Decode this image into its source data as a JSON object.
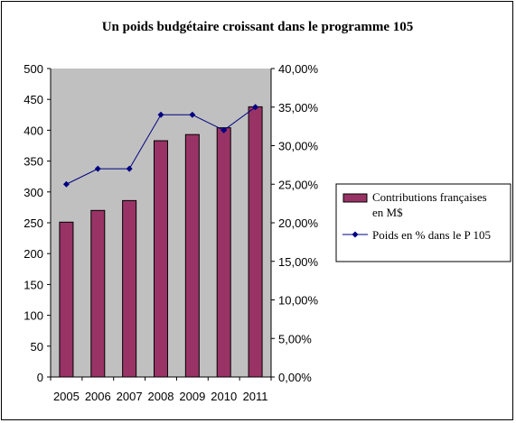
{
  "chart_data": {
    "type": "bar",
    "title": "Un poids budgétaire croissant dans le programme 105",
    "categories": [
      "2005",
      "2006",
      "2007",
      "2008",
      "2009",
      "2010",
      "2011"
    ],
    "series": [
      {
        "name_lines": [
          "Contributions françaises",
          "en M$"
        ],
        "type": "bar",
        "axis": "left",
        "values": [
          251,
          270,
          286,
          383,
          393,
          404,
          438
        ]
      },
      {
        "name_lines": [
          "Poids en % dans le P 105"
        ],
        "type": "line",
        "axis": "right",
        "values": [
          25,
          27,
          27,
          34,
          34,
          32,
          35
        ]
      }
    ],
    "y_left": {
      "min": 0,
      "max": 500,
      "ticks": [
        "0",
        "50",
        "100",
        "150",
        "200",
        "250",
        "300",
        "350",
        "400",
        "450",
        "500"
      ]
    },
    "y_right": {
      "min": 0,
      "max": 40,
      "ticks": [
        "0,00%",
        "5,00%",
        "10,00%",
        "15,00%",
        "20,00%",
        "25,00%",
        "30,00%",
        "35,00%",
        "40,00%"
      ]
    },
    "colors": {
      "bar_fill": "#993366",
      "line": "#000080",
      "plot_bg": "#c0c0c0"
    },
    "legend_position": "right"
  }
}
